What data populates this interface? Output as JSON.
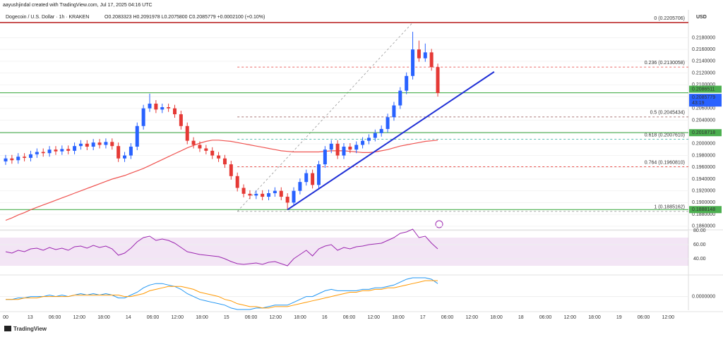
{
  "header": {
    "credit": "aayushjindal created with TradingView.com, Jul 17, 2025 04:16 UTC",
    "symbol": "Dogecoin / U.S. Dollar · 1h · KRAKEN",
    "ohlc": "O0.2083323 H0.2091978 L0.2075800 C0.2085779 +0.0002100 (+0.10%)"
  },
  "footer": "TradingView",
  "chart_data": {
    "type": "candlestick",
    "currency": "USD",
    "open": [
      0.197,
      0.1975,
      0.1972,
      0.1978,
      0.1976,
      0.1982,
      0.1986,
      0.1984,
      0.199,
      0.1987,
      0.1991,
      0.1988,
      0.1996,
      0.2,
      0.1995,
      0.2002,
      0.1998,
      0.2003,
      0.1996,
      0.1975,
      0.198,
      0.1995,
      0.203,
      0.206,
      0.2068,
      0.2058,
      0.2062,
      0.206,
      0.205,
      0.203,
      0.2005,
      0.1998,
      0.1992,
      0.1988,
      0.198,
      0.1975,
      0.1965,
      0.1945,
      0.1925,
      0.1915,
      0.1912,
      0.1915,
      0.191,
      0.1916,
      0.192,
      0.191,
      0.19,
      0.192,
      0.1935,
      0.195,
      0.193,
      0.1965,
      0.199,
      0.2,
      0.198,
      0.1995,
      0.199,
      0.1998,
      0.2005,
      0.201,
      0.2018,
      0.2025,
      0.2045,
      0.2065,
      0.209,
      0.2115,
      0.216,
      0.2145,
      0.2155,
      0.213
    ],
    "high": [
      0.1981,
      0.1981,
      0.1984,
      0.1984,
      0.1988,
      0.1992,
      0.1992,
      0.1996,
      0.1996,
      0.1997,
      0.1997,
      0.2002,
      0.2006,
      0.2006,
      0.2008,
      0.2008,
      0.2009,
      0.2009,
      0.2002,
      0.1986,
      0.2001,
      0.2036,
      0.2066,
      0.2085,
      0.2074,
      0.2068,
      0.2068,
      0.2066,
      0.2056,
      0.2036,
      0.2011,
      0.2004,
      0.1998,
      0.1994,
      0.1986,
      0.1981,
      0.1971,
      0.1951,
      0.1931,
      0.1921,
      0.1921,
      0.1921,
      0.1922,
      0.1926,
      0.1926,
      0.1916,
      0.1926,
      0.1941,
      0.1956,
      0.1956,
      0.1971,
      0.1996,
      0.2006,
      0.2006,
      0.2001,
      0.2001,
      0.2004,
      0.2011,
      0.2016,
      0.2024,
      0.2031,
      0.2051,
      0.2071,
      0.2096,
      0.2121,
      0.219,
      0.2175,
      0.217,
      0.2161,
      0.2136
    ],
    "low": [
      0.1964,
      0.1966,
      0.1966,
      0.197,
      0.197,
      0.1976,
      0.1978,
      0.1978,
      0.1981,
      0.1981,
      0.1982,
      0.1982,
      0.199,
      0.1989,
      0.1989,
      0.1992,
      0.1992,
      0.199,
      0.1969,
      0.1969,
      0.1974,
      0.1989,
      0.2024,
      0.2054,
      0.2052,
      0.2052,
      0.2054,
      0.2044,
      0.2024,
      0.1999,
      0.1992,
      0.1986,
      0.1982,
      0.1974,
      0.1969,
      0.1959,
      0.1939,
      0.1919,
      0.1909,
      0.1906,
      0.1906,
      0.1904,
      0.1904,
      0.191,
      0.1904,
      0.1888,
      0.1894,
      0.1914,
      0.1929,
      0.1924,
      0.1924,
      0.1959,
      0.1984,
      0.1974,
      0.1974,
      0.1984,
      0.1984,
      0.1992,
      0.1999,
      0.2004,
      0.2012,
      0.2019,
      0.2039,
      0.2059,
      0.2084,
      0.2109,
      0.2139,
      0.2139,
      0.2124,
      0.208
    ],
    "close": [
      0.1975,
      0.1972,
      0.1978,
      0.1976,
      0.1982,
      0.1986,
      0.1984,
      0.199,
      0.1987,
      0.1991,
      0.1988,
      0.1996,
      0.2,
      0.1995,
      0.2002,
      0.1998,
      0.2003,
      0.1996,
      0.1975,
      0.198,
      0.1995,
      0.203,
      0.206,
      0.2068,
      0.2058,
      0.2062,
      0.206,
      0.205,
      0.203,
      0.2005,
      0.1998,
      0.1992,
      0.1988,
      0.198,
      0.1975,
      0.1965,
      0.1945,
      0.1925,
      0.1915,
      0.1912,
      0.1915,
      0.191,
      0.1916,
      0.192,
      0.191,
      0.19,
      0.192,
      0.1935,
      0.195,
      0.193,
      0.1965,
      0.199,
      0.2,
      0.198,
      0.1995,
      0.199,
      0.1998,
      0.2005,
      0.201,
      0.2018,
      0.2025,
      0.2045,
      0.2065,
      0.209,
      0.2115,
      0.216,
      0.2145,
      0.2155,
      0.213,
      0.2086
    ],
    "up_color": "#2962ff",
    "down_color": "#e53935",
    "ma": [
      0.187,
      0.1874,
      0.1879,
      0.1883,
      0.1888,
      0.1892,
      0.1896,
      0.19,
      0.1904,
      0.1908,
      0.1912,
      0.1916,
      0.192,
      0.1924,
      0.1928,
      0.1932,
      0.1936,
      0.194,
      0.1943,
      0.1946,
      0.195,
      0.1954,
      0.1958,
      0.1963,
      0.1968,
      0.1973,
      0.1978,
      0.1983,
      0.1988,
      0.1993,
      0.1997,
      0.2001,
      0.2004,
      0.2006,
      0.2006,
      0.2005,
      0.2004,
      0.2002,
      0.2,
      0.1998,
      0.1996,
      0.1994,
      0.1992,
      0.199,
      0.1988,
      0.1987,
      0.1986,
      0.1986,
      0.1986,
      0.1986,
      0.1986,
      0.1987,
      0.1988,
      0.1988,
      0.1988,
      0.1987,
      0.1986,
      0.1985,
      0.1985,
      0.1986,
      0.1988,
      0.199,
      0.1993,
      0.1996,
      0.1998,
      0.2,
      0.2002,
      0.2004,
      0.2005,
      0.2006
    ],
    "ma_color": "#ef5350",
    "ylim": [
      0.1855,
      0.222
    ],
    "yticks": [
      {
        "value": 0.186,
        "label": "0.1860000"
      },
      {
        "value": 0.188,
        "label": "0.1880000"
      },
      {
        "value": 0.19,
        "label": "0.1900000"
      },
      {
        "value": 0.192,
        "label": "0.1920000"
      },
      {
        "value": 0.194,
        "label": "0.1940000"
      },
      {
        "value": 0.196,
        "label": "0.1960000"
      },
      {
        "value": 0.198,
        "label": "0.1980000"
      },
      {
        "value": 0.2,
        "label": "0.2000000"
      },
      {
        "value": 0.202,
        "label": "0.2020000"
      },
      {
        "value": 0.204,
        "label": "0.2040000"
      },
      {
        "value": 0.206,
        "label": "0.2060000"
      },
      {
        "value": 0.208,
        "label": "0.2080000"
      },
      {
        "value": 0.21,
        "label": "0.2100000"
      },
      {
        "value": 0.212,
        "label": "0.2120000"
      },
      {
        "value": 0.214,
        "label": "0.2140000"
      },
      {
        "value": 0.216,
        "label": "0.2160000"
      },
      {
        "value": 0.218,
        "label": "0.2180000"
      }
    ],
    "levels": [
      {
        "value": 0.2086511,
        "label": "0.2086511",
        "color": "#4caf50"
      },
      {
        "value": 0.2018718,
        "label": "0.2018718",
        "color": "#4caf50"
      },
      {
        "value": 0.1888148,
        "label": "0.1888148",
        "color": "#4caf50"
      }
    ],
    "last_price": {
      "value": 0.2085779,
      "label": "0.2085779",
      "countdown": "43:19",
      "color": "#2962ff"
    },
    "fib": {
      "from": [
        37,
        0.1885162
      ],
      "to": [
        65,
        0.2205706
      ],
      "levels": [
        {
          "value": 0.2205706,
          "label": "0 (0.2205706)",
          "color": "#b71c1c"
        },
        {
          "value": 0.2130058,
          "label": "0.236 (0.2130058)",
          "color": "#e53935"
        },
        {
          "value": 0.2045434,
          "label": "0.5 (0.2045434)",
          "color": "#8d4b4b"
        },
        {
          "value": 0.200761,
          "label": "0.618 (0.2007610)",
          "color": "#26a69a"
        },
        {
          "value": 0.196081,
          "label": "0.764 (0.1960810)",
          "color": "#e53935"
        },
        {
          "value": 0.1885162,
          "label": "1 (0.1885162)",
          "color": "#9e9e9e"
        }
      ]
    },
    "trendline": {
      "start": [
        45,
        0.1888
      ],
      "end": [
        78,
        0.2122
      ],
      "color": "#1f2fd6"
    },
    "rsi": {
      "color": "#9c27b0",
      "ylim": [
        20,
        85
      ],
      "band": [
        30,
        70
      ],
      "yticks": [
        {
          "value": 40,
          "label": "40.00"
        },
        {
          "value": 60,
          "label": "60.00"
        },
        {
          "value": 80,
          "label": "80.00"
        }
      ],
      "values": [
        50,
        48,
        52,
        50,
        54,
        55,
        52,
        56,
        53,
        55,
        52,
        57,
        58,
        55,
        59,
        56,
        58,
        54,
        45,
        48,
        55,
        64,
        70,
        72,
        66,
        68,
        66,
        62,
        56,
        50,
        48,
        46,
        45,
        44,
        43,
        40,
        36,
        33,
        32,
        33,
        34,
        32,
        35,
        36,
        33,
        30,
        40,
        46,
        52,
        44,
        54,
        58,
        60,
        52,
        56,
        54,
        57,
        58,
        60,
        61,
        62,
        66,
        70,
        76,
        78,
        82,
        70,
        72,
        62,
        54
      ]
    },
    "macd": {
      "ylim": [
        -0.001,
        0.0014
      ],
      "yticks": [
        {
          "value": 0,
          "label": "0.0000000"
        }
      ],
      "macd_color": "#2196f3",
      "signal_color": "#ff9800",
      "macd": [
        -0.0002,
        -0.0002,
        -0.0001,
        -0.0001,
        0,
        0,
        0,
        0.0001,
        0,
        0.0001,
        0,
        0.0001,
        0.0002,
        0.0001,
        0.0002,
        0.0001,
        0.0002,
        0.0001,
        -0.0001,
        -0.0001,
        0.0001,
        0.0003,
        0.0006,
        0.0008,
        0.0009,
        0.0009,
        0.0008,
        0.0007,
        0.0005,
        0.0002,
        0,
        -0.0002,
        -0.0003,
        -0.0004,
        -0.0005,
        -0.0006,
        -0.0008,
        -0.0009,
        -0.0009,
        -0.0009,
        -0.0008,
        -0.0008,
        -0.0007,
        -0.0006,
        -0.0006,
        -0.0006,
        -0.0004,
        -0.0002,
        0,
        0,
        0.0002,
        0.0004,
        0.0005,
        0.0004,
        0.0004,
        0.0004,
        0.0004,
        0.0005,
        0.0005,
        0.0006,
        0.0006,
        0.0007,
        0.0008,
        0.001,
        0.0012,
        0.0013,
        0.0013,
        0.0013,
        0.0012,
        0.0009
      ],
      "signal": [
        -0.0002,
        -0.0002,
        -0.0002,
        -0.0001,
        -0.0001,
        -0.0001,
        0,
        0,
        0,
        0,
        0,
        0.0001,
        0.0001,
        0.0001,
        0.0001,
        0.0001,
        0.0001,
        0.0001,
        0.0001,
        0,
        0,
        0.0001,
        0.0002,
        0.0004,
        0.0005,
        0.0006,
        0.0007,
        0.0007,
        0.0007,
        0.0006,
        0.0005,
        0.0003,
        0.0002,
        0.0001,
        0,
        -0.0002,
        -0.0003,
        -0.0005,
        -0.0006,
        -0.0007,
        -0.0007,
        -0.0008,
        -0.0008,
        -0.0007,
        -0.0007,
        -0.0007,
        -0.0006,
        -0.0005,
        -0.0004,
        -0.0003,
        -0.0002,
        -0.0001,
        0,
        0.0001,
        0.0002,
        0.0003,
        0.0003,
        0.0004,
        0.0004,
        0.0005,
        0.0005,
        0.0006,
        0.0006,
        0.0007,
        0.0008,
        0.0009,
        0.001,
        0.0011,
        0.0011,
        0.0011
      ]
    },
    "time_labels": [
      "00",
      "13",
      "06:00",
      "12:00",
      "18:00",
      "14",
      "06:00",
      "12:00",
      "18:00",
      "15",
      "06:00",
      "12:00",
      "18:00",
      "16",
      "06:00",
      "12:00",
      "18:00",
      "17",
      "06:00",
      "12:00",
      "18:00",
      "18",
      "06:00",
      "12:00",
      "18:00",
      "19",
      "06:00",
      "12:00"
    ]
  }
}
